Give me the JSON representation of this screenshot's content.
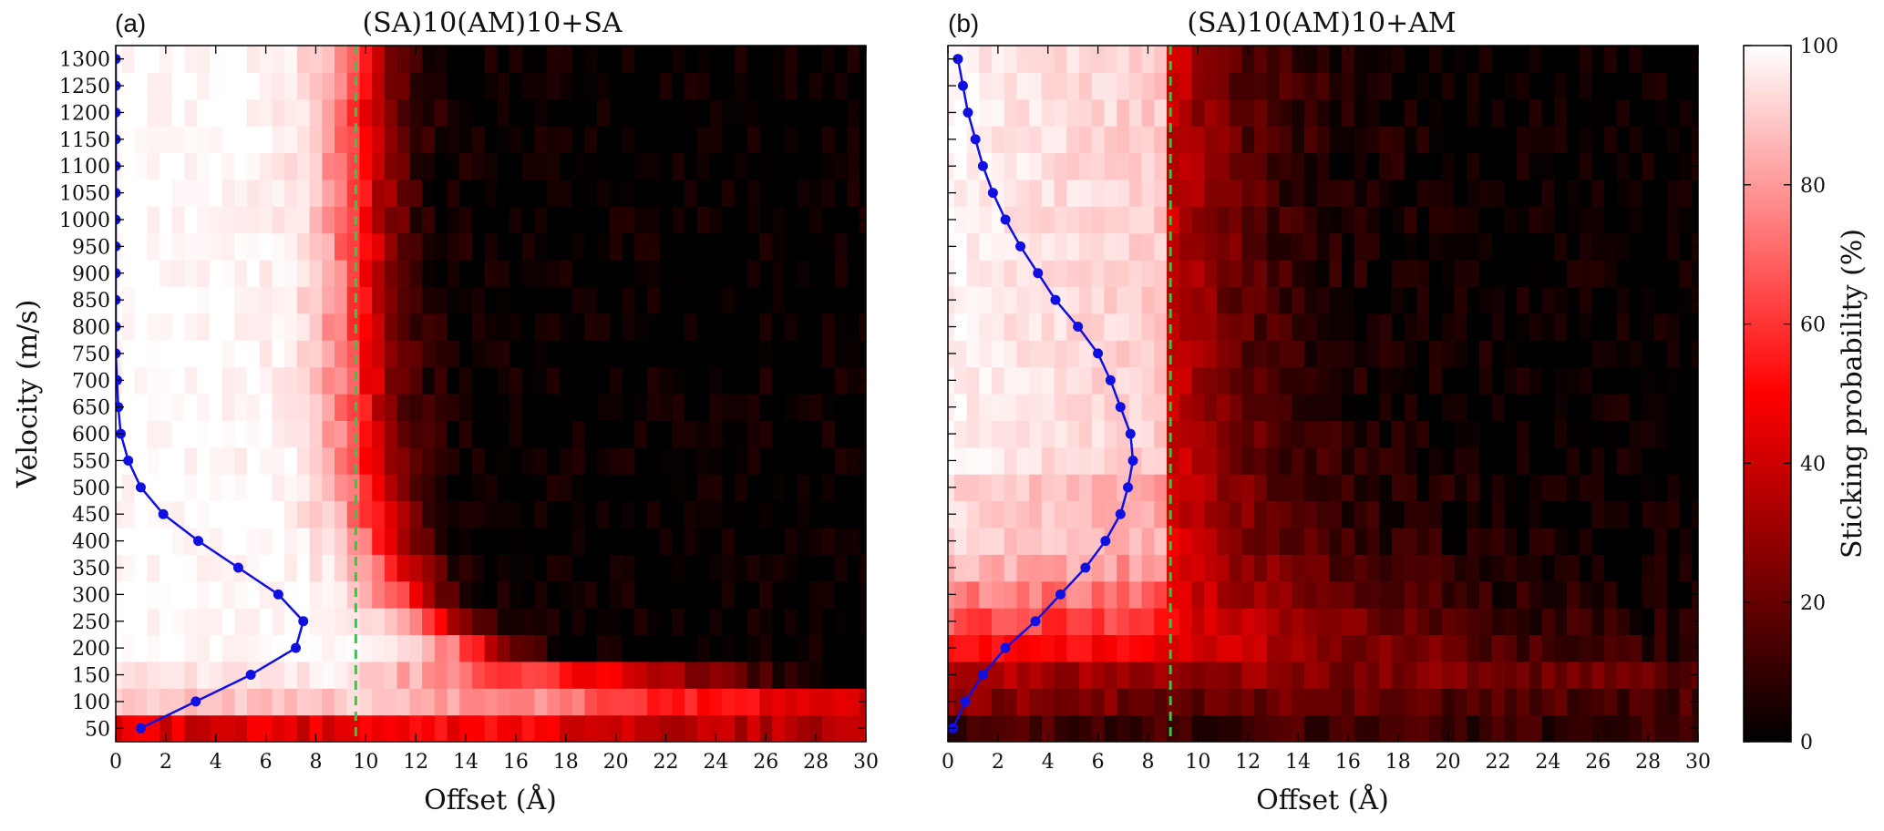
{
  "chart_data": [
    {
      "type": "heatmap",
      "panel_label": "(a)",
      "title": "(SA)10(AM)10+SA",
      "xlabel": "Offset (Å)",
      "ylabel": "Velocity (m/s)",
      "xlim": [
        0,
        30
      ],
      "ylim": [
        25,
        1325
      ],
      "x_ticks": [
        0,
        2,
        4,
        6,
        8,
        10,
        12,
        14,
        16,
        18,
        20,
        22,
        24,
        26,
        28,
        30
      ],
      "y_ticks": [
        50,
        100,
        150,
        200,
        250,
        300,
        350,
        400,
        450,
        500,
        550,
        600,
        650,
        700,
        750,
        800,
        850,
        900,
        950,
        1000,
        1050,
        1100,
        1150,
        1200,
        1250,
        1300
      ],
      "y_tick_labels_shown": true,
      "reference_line": {
        "x": 9.6,
        "style": "dashed",
        "color": "#2ecc40"
      },
      "curve": {
        "color": "#1010e0",
        "x": [
          1.0,
          3.2,
          5.4,
          7.2,
          7.5,
          6.5,
          4.9,
          3.3,
          1.9,
          1.0,
          0.5,
          0.2,
          0.1,
          0.05,
          0.0,
          0.0,
          0.0,
          0.0,
          0.0,
          0.0,
          0.0,
          0.0,
          0.0,
          0.0,
          0.0,
          0.0
        ],
        "y": [
          50,
          100,
          150,
          200,
          250,
          300,
          350,
          400,
          450,
          500,
          550,
          600,
          650,
          700,
          750,
          800,
          850,
          900,
          950,
          1000,
          1050,
          1100,
          1150,
          1200,
          1250,
          1300
        ]
      }
    },
    {
      "type": "heatmap",
      "panel_label": "(b)",
      "title": "(SA)10(AM)10+AM",
      "xlabel": "Offset (Å)",
      "ylabel": "",
      "xlim": [
        0,
        30
      ],
      "ylim": [
        25,
        1325
      ],
      "x_ticks": [
        0,
        2,
        4,
        6,
        8,
        10,
        12,
        14,
        16,
        18,
        20,
        22,
        24,
        26,
        28,
        30
      ],
      "y_ticks": [
        50,
        100,
        150,
        200,
        250,
        300,
        350,
        400,
        450,
        500,
        550,
        600,
        650,
        700,
        750,
        800,
        850,
        900,
        950,
        1000,
        1050,
        1100,
        1150,
        1200,
        1250,
        1300
      ],
      "y_tick_labels_shown": false,
      "reference_line": {
        "x": 8.9,
        "style": "dashed",
        "color": "#2ecc40"
      },
      "curve": {
        "color": "#1010e0",
        "x": [
          0.2,
          0.7,
          1.4,
          2.3,
          3.5,
          4.5,
          5.5,
          6.3,
          6.9,
          7.2,
          7.4,
          7.3,
          6.9,
          6.5,
          6.0,
          5.2,
          4.3,
          3.6,
          2.9,
          2.3,
          1.8,
          1.4,
          1.1,
          0.8,
          0.6,
          0.4
        ],
        "y": [
          50,
          100,
          150,
          200,
          250,
          300,
          350,
          400,
          450,
          500,
          550,
          600,
          650,
          700,
          750,
          800,
          850,
          900,
          950,
          1000,
          1050,
          1100,
          1150,
          1200,
          1250,
          1300
        ]
      }
    }
  ],
  "colorbar": {
    "label": "Sticking probability (%)",
    "ticks": [
      0,
      20,
      40,
      60,
      80,
      100
    ],
    "colormap": [
      "#000000",
      "#ff0000",
      "#ffffff"
    ]
  }
}
